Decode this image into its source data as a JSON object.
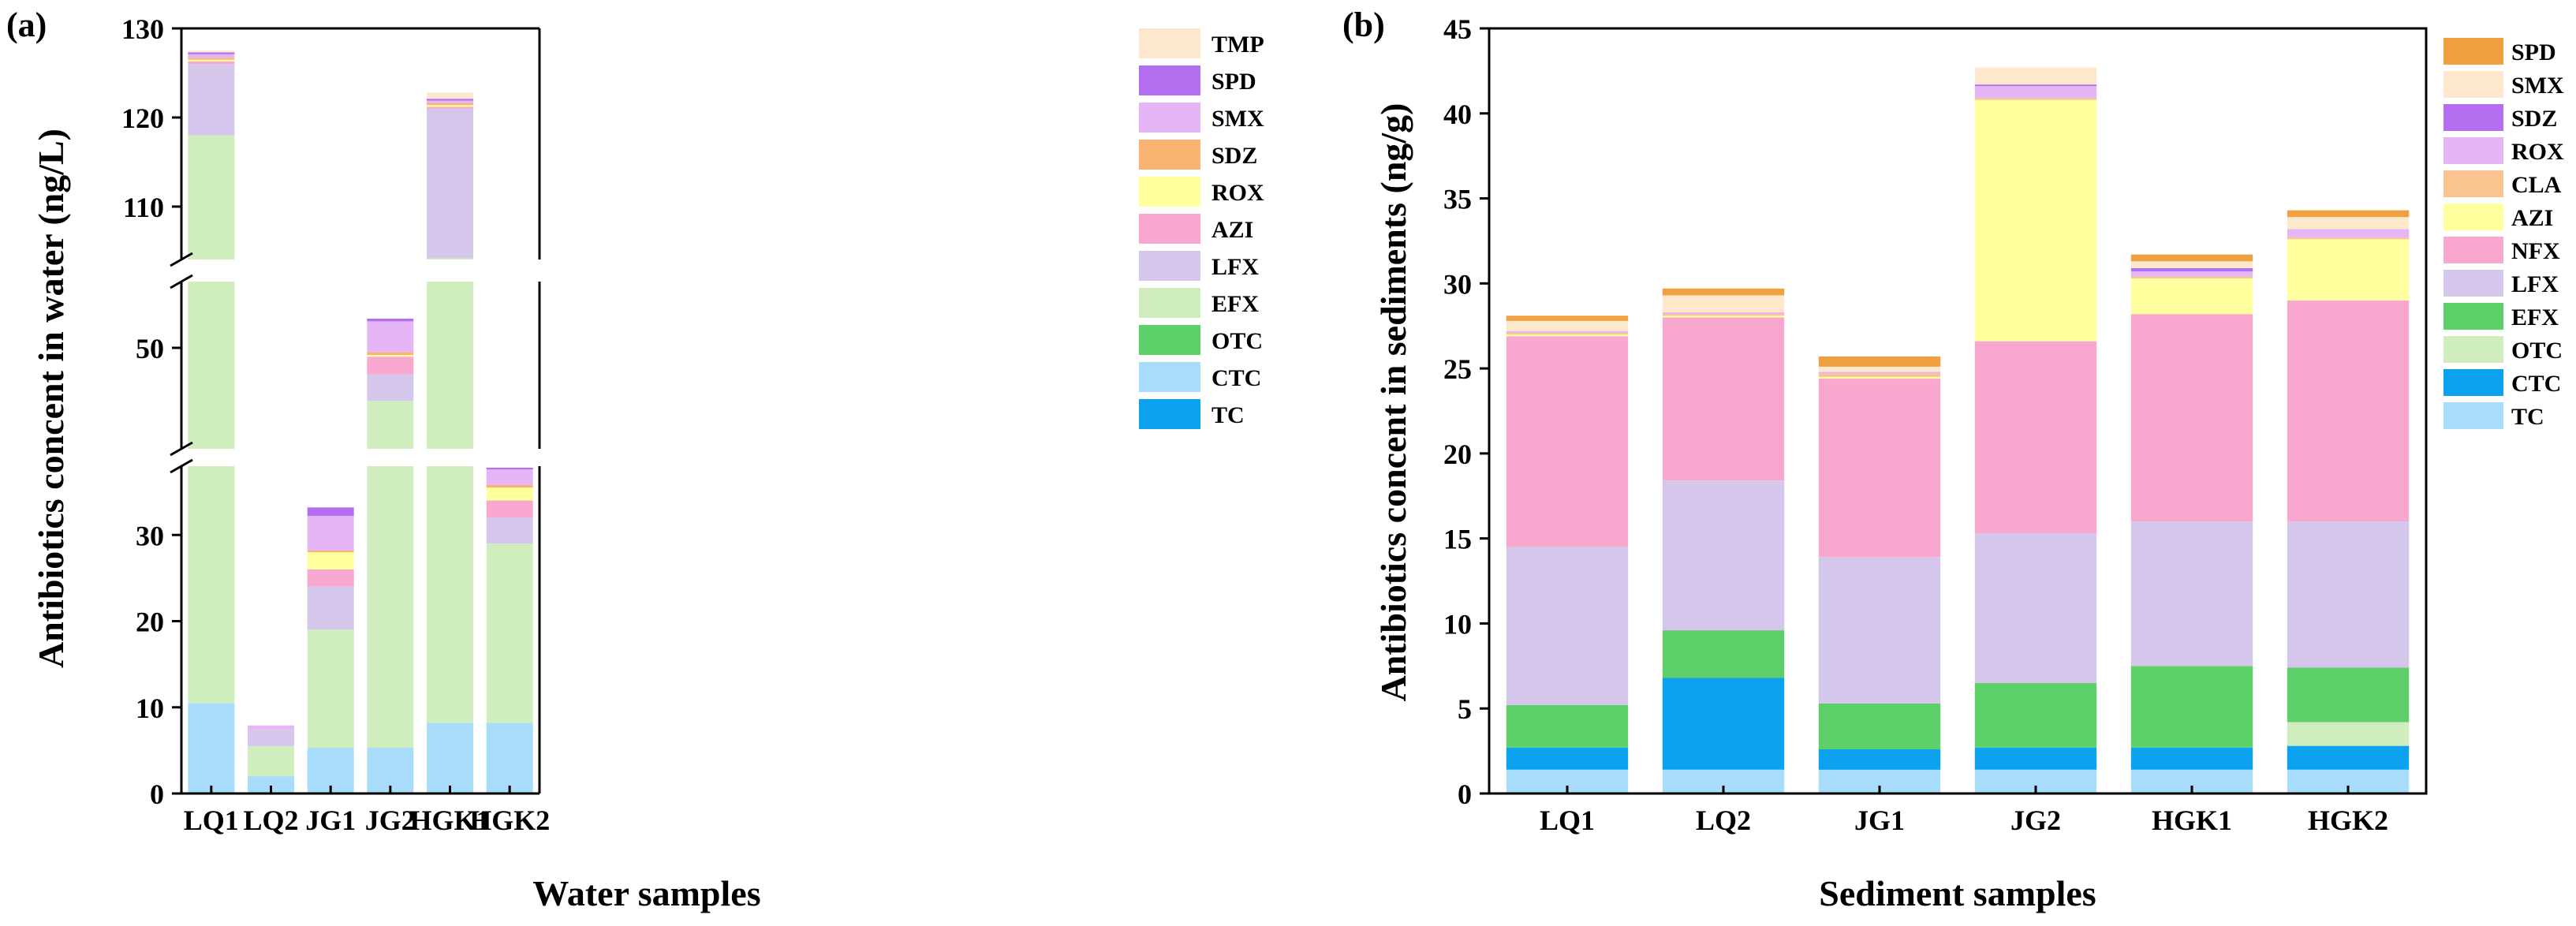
{
  "chart_data": [
    {
      "type": "bar",
      "stacked": true,
      "panel_label": "(a)",
      "xlabel": "Water samples",
      "ylabel": "Antibiotics concent in water (ng/L)",
      "categories": [
        "LQ1",
        "LQ2",
        "JG1",
        "JG2",
        "HGK1",
        "HGK2"
      ],
      "y_segments": [
        {
          "range": [
            0,
            40
          ],
          "ticks": [
            "0",
            "10",
            "20",
            "30"
          ]
        },
        {
          "range": [
            40,
            60
          ],
          "ticks": [
            "50"
          ]
        },
        {
          "range": [
            103,
            130
          ],
          "ticks": [
            "110",
            "120",
            "130"
          ]
        }
      ],
      "legend_order": [
        "TMP",
        "SPD",
        "SMX",
        "SDZ",
        "ROX",
        "AZI",
        "LFX",
        "EFX",
        "OTC",
        "CTC",
        "TC"
      ],
      "series": [
        {
          "name": "TC",
          "color": "#0da2f0",
          "values": [
            0,
            0,
            0,
            0,
            0,
            0
          ]
        },
        {
          "name": "CTC",
          "color": "#a8dcfb",
          "values": [
            10.5,
            2.0,
            5.3,
            5.3,
            8.2,
            8.2
          ]
        },
        {
          "name": "OTC",
          "color": "#5ed06a",
          "values": [
            0,
            0,
            0,
            0,
            0,
            0
          ]
        },
        {
          "name": "EFX",
          "color": "#cfedbd",
          "values": [
            107.5,
            3.5,
            13.7,
            38.7,
            96.0,
            20.8
          ]
        },
        {
          "name": "LFX",
          "color": "#d5c7ec",
          "values": [
            8.0,
            2.0,
            5.0,
            3.0,
            16.8,
            3.0
          ]
        },
        {
          "name": "AZI",
          "color": "#f8a8cf",
          "values": [
            0.3,
            0,
            2.0,
            2.0,
            0.2,
            2.0
          ]
        },
        {
          "name": "ROX",
          "color": "#ffff9e",
          "values": [
            0.2,
            0,
            2.0,
            0.2,
            0.2,
            1.5
          ]
        },
        {
          "name": "SDZ",
          "color": "#f9b472",
          "values": [
            0.2,
            0,
            0.2,
            0.3,
            0.2,
            0.3
          ]
        },
        {
          "name": "SMX",
          "color": "#e6b5f6",
          "values": [
            0.4,
            0.4,
            4.0,
            3.5,
            0.3,
            1.8
          ]
        },
        {
          "name": "SPD",
          "color": "#b46ff0",
          "values": [
            0.2,
            0,
            1.0,
            0.3,
            0.2,
            0.2
          ]
        },
        {
          "name": "TMP",
          "color": "#fde7cd",
          "values": [
            0.2,
            0,
            0,
            0,
            0.7,
            0
          ]
        }
      ]
    },
    {
      "type": "bar",
      "stacked": true,
      "panel_label": "(b)",
      "xlabel": "Sediment samples",
      "ylabel": "Antibiotics concent in sediments (ng/g)",
      "categories": [
        "LQ1",
        "LQ2",
        "JG1",
        "JG2",
        "HGK1",
        "HGK2"
      ],
      "ylim": [
        0,
        45
      ],
      "yticks": [
        "0",
        "5",
        "10",
        "15",
        "20",
        "25",
        "30",
        "35",
        "40",
        "45"
      ],
      "legend_order": [
        "SPD",
        "SMX",
        "SDZ",
        "ROX",
        "CLA",
        "AZI",
        "NFX",
        "LFX",
        "EFX",
        "OTC",
        "CTC",
        "TC"
      ],
      "series": [
        {
          "name": "TC",
          "color": "#a8dcfb",
          "values": [
            1.4,
            1.4,
            1.4,
            1.4,
            1.4,
            1.4
          ]
        },
        {
          "name": "CTC",
          "color": "#0da2f0",
          "values": [
            1.3,
            5.4,
            1.2,
            1.3,
            1.3,
            1.4
          ]
        },
        {
          "name": "OTC",
          "color": "#cfedbd",
          "values": [
            0,
            0,
            0,
            0,
            0,
            1.4
          ]
        },
        {
          "name": "EFX",
          "color": "#5ed06a",
          "values": [
            2.5,
            2.8,
            2.7,
            3.8,
            4.8,
            3.2
          ]
        },
        {
          "name": "LFX",
          "color": "#d5c7ec",
          "values": [
            9.3,
            8.8,
            8.6,
            8.8,
            8.5,
            8.6
          ]
        },
        {
          "name": "NFX",
          "color": "#f8a8cf",
          "values": [
            12.4,
            9.6,
            10.5,
            11.3,
            12.2,
            13.0
          ]
        },
        {
          "name": "AZI",
          "color": "#ffff9e",
          "values": [
            0.1,
            0.1,
            0.1,
            14.2,
            2.1,
            3.6
          ]
        },
        {
          "name": "CLA",
          "color": "#f9c490",
          "values": [
            0.1,
            0.1,
            0.2,
            0.1,
            0.1,
            0.1
          ]
        },
        {
          "name": "ROX",
          "color": "#e6b5f6",
          "values": [
            0.1,
            0.1,
            0.1,
            0.7,
            0.3,
            0.5
          ]
        },
        {
          "name": "SDZ",
          "color": "#b46ff0",
          "values": [
            0,
            0,
            0,
            0.1,
            0.2,
            0
          ]
        },
        {
          "name": "SMX",
          "color": "#fde7cd",
          "values": [
            0.6,
            1.0,
            0.3,
            1.0,
            0.4,
            0.7
          ]
        },
        {
          "name": "SPD",
          "color": "#f0a040",
          "values": [
            0.3,
            0.4,
            0.6,
            0,
            0.4,
            0.4
          ]
        }
      ]
    }
  ]
}
